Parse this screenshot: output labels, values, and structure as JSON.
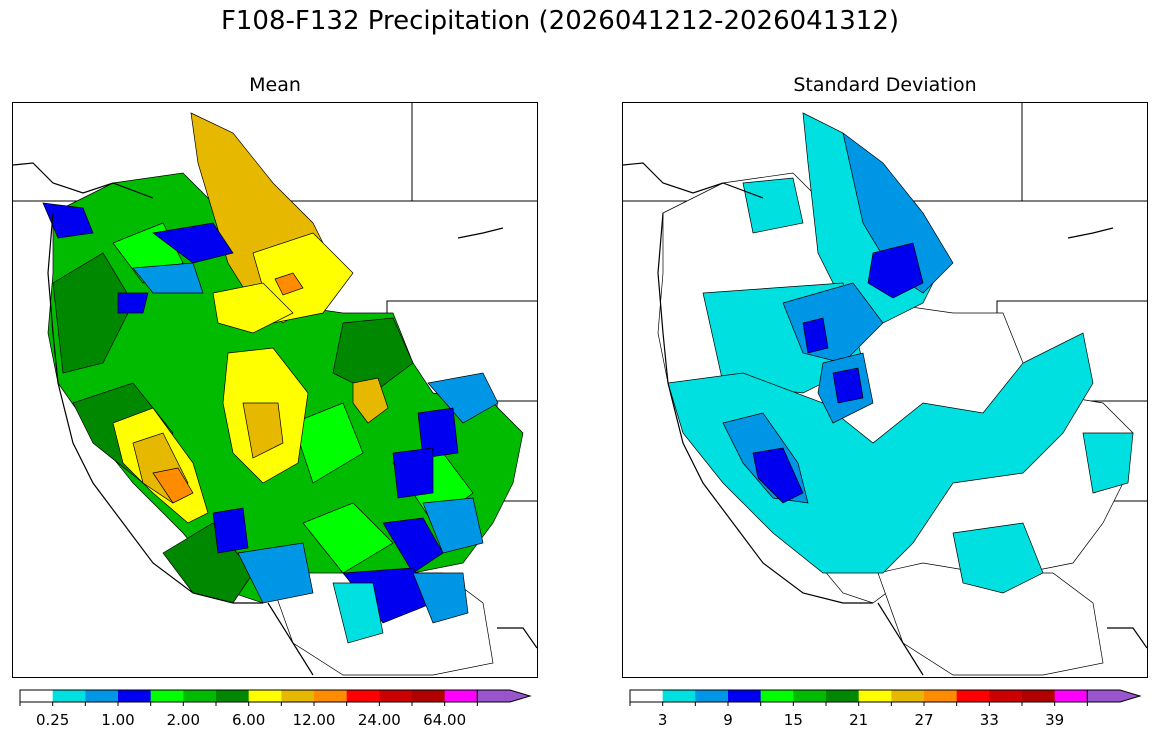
{
  "figure": {
    "title": "F108-F132 Precipitation (2026041212-2026041312)"
  },
  "panels": [
    {
      "title": "Mean",
      "colorbar": {
        "colors": [
          "#ffffff",
          "#00e0e0",
          "#0096e6",
          "#0000f0",
          "#00ff00",
          "#00bb00",
          "#008800",
          "#ffff00",
          "#e6b800",
          "#ff8c00",
          "#ff0000",
          "#cc0000",
          "#b00000",
          "#ff00ff",
          "#9955cc"
        ],
        "tick_labels": [
          "0.25",
          "1.00",
          "2.00",
          "6.00",
          "12.00",
          "24.00",
          "64.00"
        ]
      }
    },
    {
      "title": "Standard Deviation",
      "colorbar": {
        "colors": [
          "#ffffff",
          "#00e0e0",
          "#0096e6",
          "#0000f0",
          "#00ff00",
          "#00bb00",
          "#008800",
          "#ffff00",
          "#e6b800",
          "#ff8c00",
          "#ff0000",
          "#cc0000",
          "#b00000",
          "#ff00ff",
          "#9955cc"
        ],
        "tick_labels": [
          "3",
          "9",
          "15",
          "21",
          "27",
          "33",
          "39"
        ]
      }
    }
  ]
}
